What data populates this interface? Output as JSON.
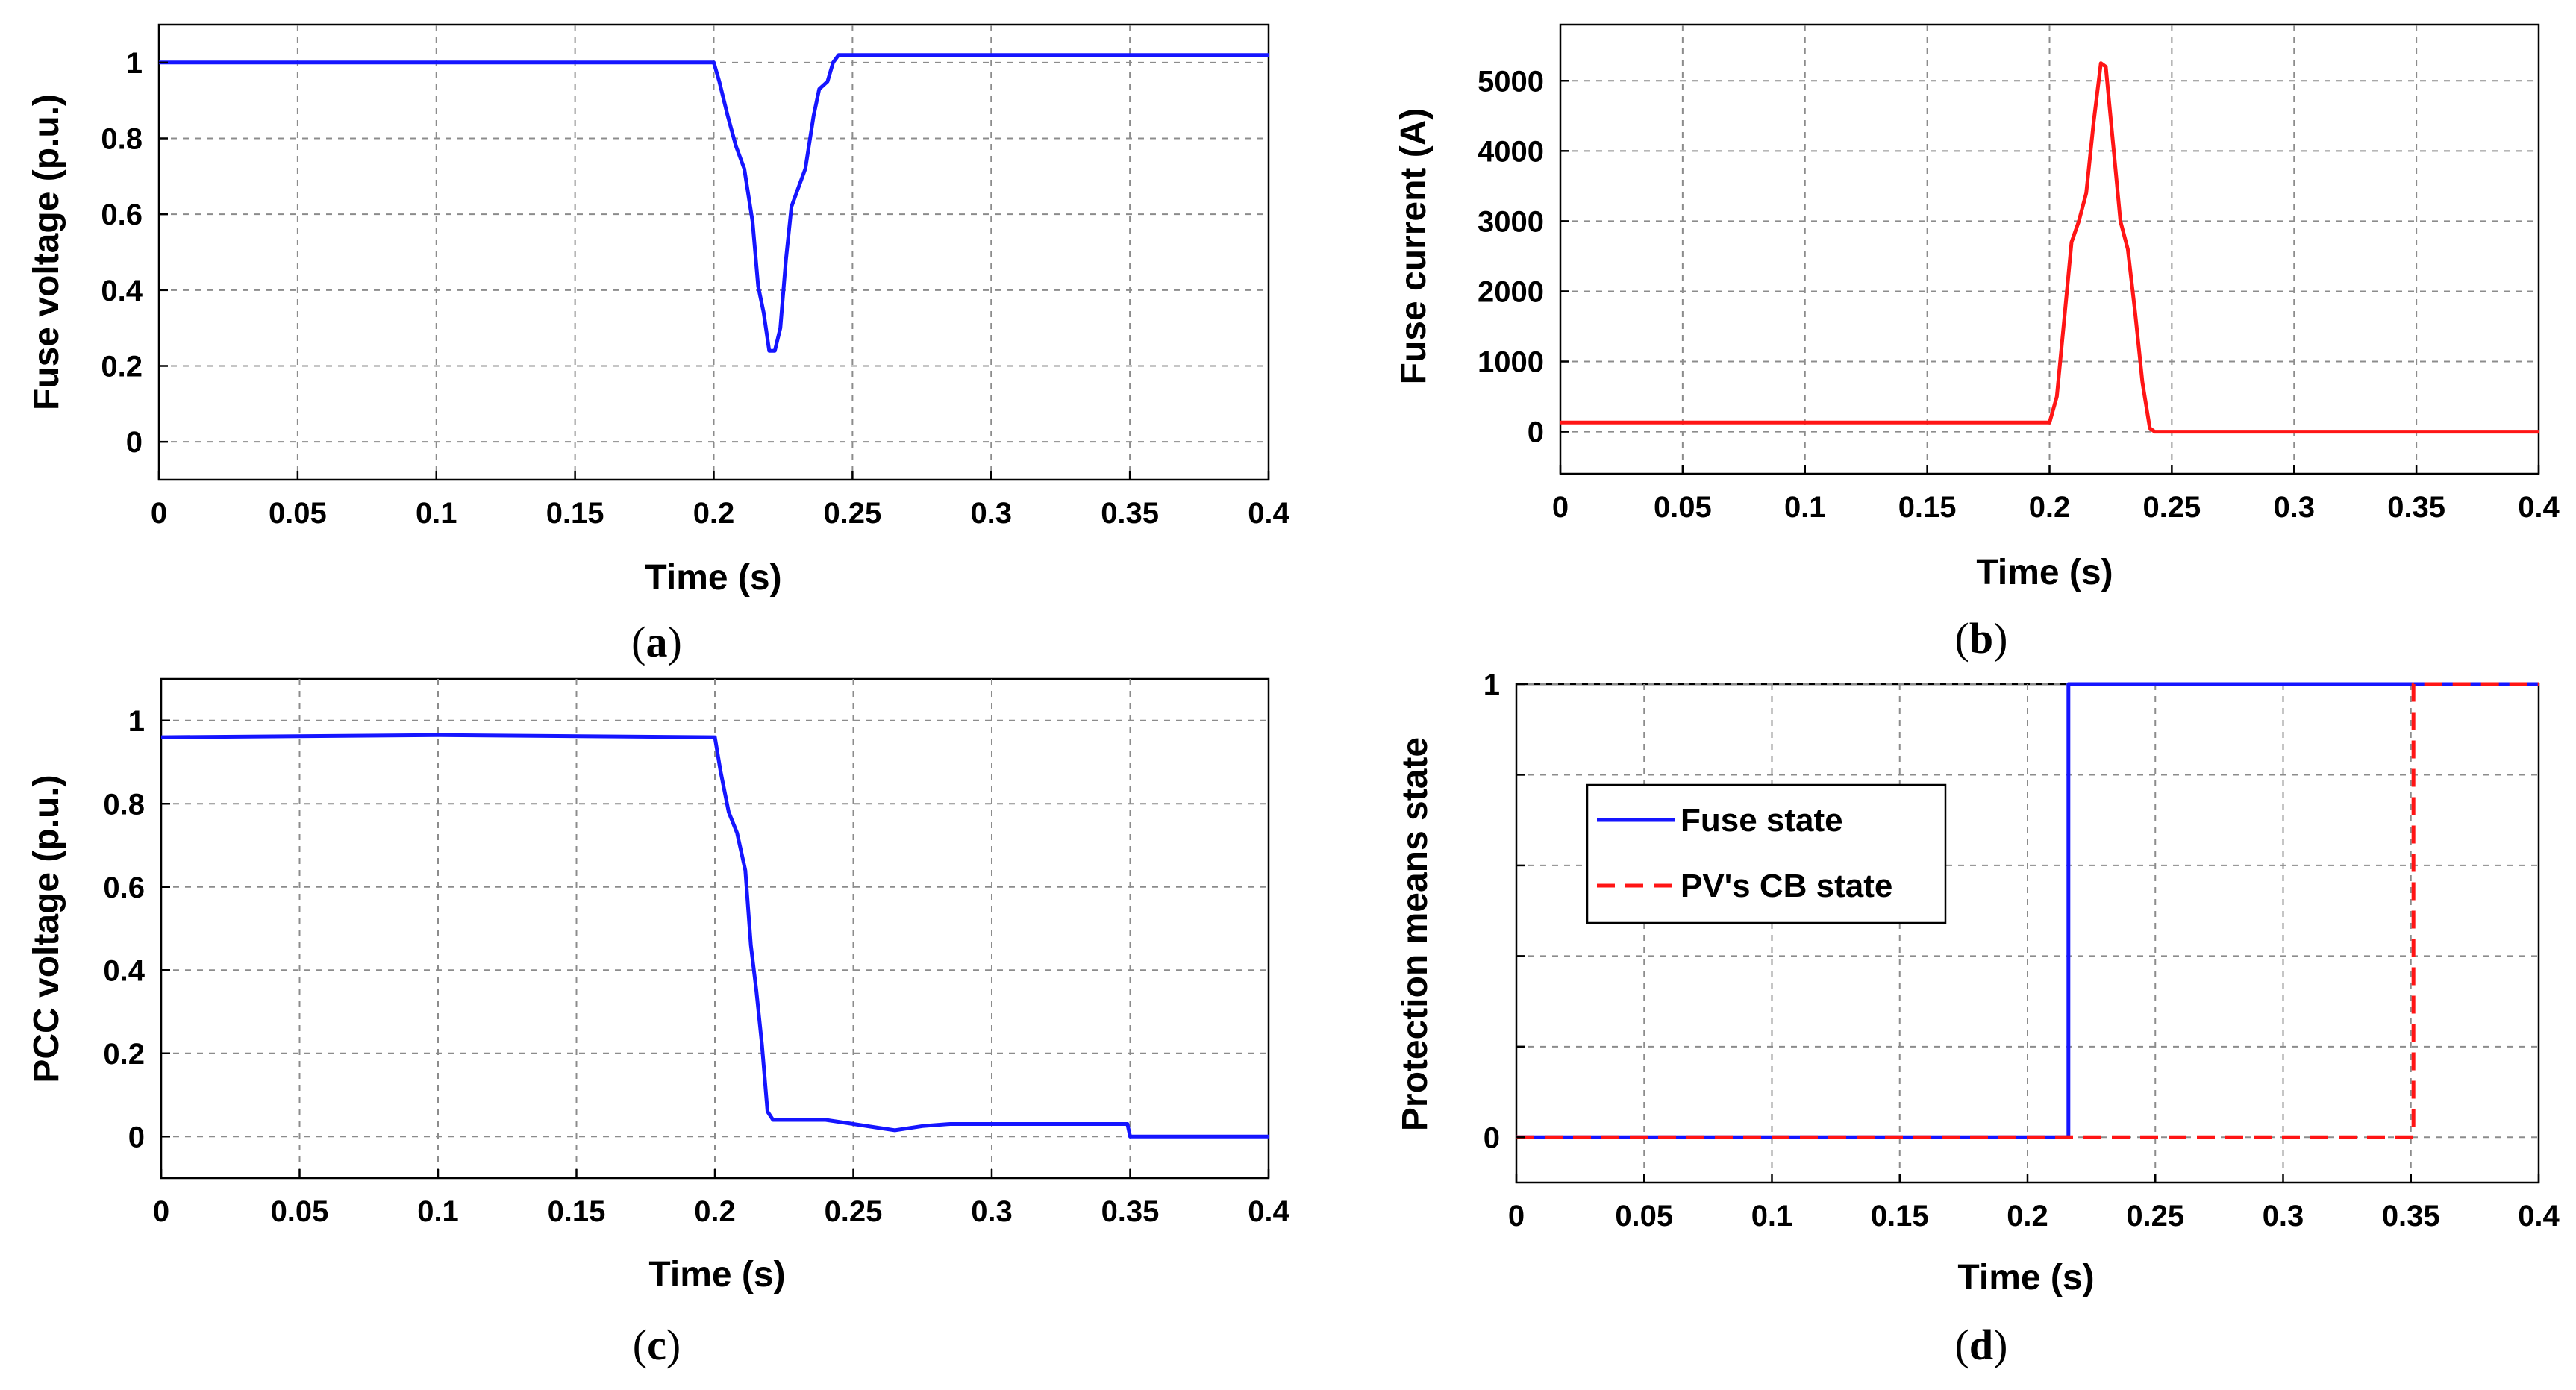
{
  "colors": {
    "blue": "#1515ff",
    "red": "#ff1515"
  },
  "chart_data": [
    {
      "id": "a",
      "type": "line",
      "caption_letter": "a",
      "xlabel": "Time (s)",
      "ylabel": "Fuse voltage (p.u.)",
      "xlim": [
        0,
        0.4
      ],
      "ylim": [
        -0.1,
        1.1
      ],
      "xticks": [
        0,
        0.05,
        0.1,
        0.15,
        0.2,
        0.25,
        0.3,
        0.35,
        0.4
      ],
      "xtick_labels": [
        "0",
        "0.05",
        "0.1",
        "0.15",
        "0.2",
        "0.25",
        "0.3",
        "0.35",
        "0.4"
      ],
      "yticks": [
        0,
        0.2,
        0.4,
        0.6,
        0.8,
        1
      ],
      "ytick_labels": [
        "0",
        "0.2",
        "0.4",
        "0.6",
        "0.8",
        "1"
      ],
      "grid": true,
      "series": [
        {
          "name": "Fuse voltage",
          "color": "#1515ff",
          "style": "solid",
          "x": [
            0,
            0.2,
            0.202,
            0.205,
            0.208,
            0.211,
            0.214,
            0.216,
            0.218,
            0.22,
            0.222,
            0.224,
            0.226,
            0.228,
            0.23,
            0.233,
            0.236,
            0.238,
            0.241,
            0.243,
            0.245,
            0.4
          ],
          "y": [
            1.0,
            1.0,
            0.95,
            0.86,
            0.78,
            0.72,
            0.58,
            0.41,
            0.34,
            0.24,
            0.24,
            0.3,
            0.48,
            0.62,
            0.66,
            0.72,
            0.86,
            0.93,
            0.95,
            1.0,
            1.02,
            1.02
          ]
        }
      ]
    },
    {
      "id": "b",
      "type": "line",
      "caption_letter": "b",
      "xlabel": "Time (s)",
      "ylabel": "Fuse current (A)",
      "xlim": [
        0,
        0.4
      ],
      "ylim": [
        -600,
        5800
      ],
      "xticks": [
        0,
        0.05,
        0.1,
        0.15,
        0.2,
        0.25,
        0.3,
        0.35,
        0.4
      ],
      "xtick_labels": [
        "0",
        "0.05",
        "0.1",
        "0.15",
        "0.2",
        "0.25",
        "0.3",
        "0.35",
        "0.4"
      ],
      "yticks": [
        0,
        1000,
        2000,
        3000,
        4000,
        5000
      ],
      "ytick_labels": [
        "0",
        "1000",
        "2000",
        "3000",
        "4000",
        "5000"
      ],
      "grid": true,
      "series": [
        {
          "name": "Fuse current",
          "color": "#ff1515",
          "style": "solid",
          "x": [
            0,
            0.2,
            0.203,
            0.206,
            0.209,
            0.212,
            0.215,
            0.218,
            0.221,
            0.223,
            0.226,
            0.229,
            0.232,
            0.235,
            0.238,
            0.241,
            0.243,
            0.4
          ],
          "y": [
            130,
            130,
            500,
            1600,
            2700,
            3000,
            3400,
            4400,
            5250,
            5200,
            4100,
            3000,
            2600,
            1700,
            700,
            50,
            0,
            0
          ]
        }
      ]
    },
    {
      "id": "c",
      "type": "line",
      "caption_letter": "c",
      "xlabel": "Time (s)",
      "ylabel": "PCC voltage (p.u.)",
      "xlim": [
        0,
        0.4
      ],
      "ylim": [
        -0.1,
        1.1
      ],
      "xticks": [
        0,
        0.05,
        0.1,
        0.15,
        0.2,
        0.25,
        0.3,
        0.35,
        0.4
      ],
      "xtick_labels": [
        "0",
        "0.05",
        "0.1",
        "0.15",
        "0.2",
        "0.25",
        "0.3",
        "0.35",
        "0.4"
      ],
      "yticks": [
        0,
        0.2,
        0.4,
        0.6,
        0.8,
        1
      ],
      "ytick_labels": [
        "0",
        "0.2",
        "0.4",
        "0.6",
        "0.8",
        "1"
      ],
      "grid": true,
      "series": [
        {
          "name": "PCC voltage",
          "color": "#1515ff",
          "style": "solid",
          "x": [
            0,
            0.1,
            0.2,
            0.202,
            0.205,
            0.208,
            0.211,
            0.213,
            0.215,
            0.217,
            0.219,
            0.221,
            0.223,
            0.23,
            0.24,
            0.25,
            0.26,
            0.265,
            0.275,
            0.285,
            0.3,
            0.349,
            0.35,
            0.4
          ],
          "y": [
            0.96,
            0.965,
            0.96,
            0.88,
            0.78,
            0.73,
            0.64,
            0.46,
            0.35,
            0.22,
            0.06,
            0.04,
            0.04,
            0.04,
            0.04,
            0.03,
            0.02,
            0.015,
            0.025,
            0.03,
            0.03,
            0.03,
            0.0,
            0.0
          ]
        }
      ]
    },
    {
      "id": "d",
      "type": "line",
      "caption_letter": "d",
      "xlabel": "Time (s)",
      "ylabel": "Protection means state",
      "xlim": [
        0,
        0.4
      ],
      "ylim": [
        -0.1,
        1.0
      ],
      "xticks": [
        0,
        0.05,
        0.1,
        0.15,
        0.2,
        0.25,
        0.3,
        0.35,
        0.4
      ],
      "xtick_labels": [
        "0",
        "0.05",
        "0.1",
        "0.15",
        "0.2",
        "0.25",
        "0.3",
        "0.35",
        "0.4"
      ],
      "yticks": [
        0,
        0.2,
        0.4,
        0.6,
        0.8,
        1
      ],
      "ytick_labels": [
        "0",
        "",
        "",
        "",
        "",
        "1"
      ],
      "grid": true,
      "legend": "top-left",
      "series": [
        {
          "name": "Fuse state",
          "color": "#1515ff",
          "style": "solid",
          "x": [
            0,
            0.216,
            0.216,
            0.4
          ],
          "y": [
            0,
            0,
            1,
            1
          ]
        },
        {
          "name": "PV's CB state",
          "color": "#ff1515",
          "style": "dashed",
          "x": [
            0,
            0.351,
            0.351,
            0.4
          ],
          "y": [
            0,
            0,
            1,
            1
          ]
        }
      ]
    }
  ]
}
